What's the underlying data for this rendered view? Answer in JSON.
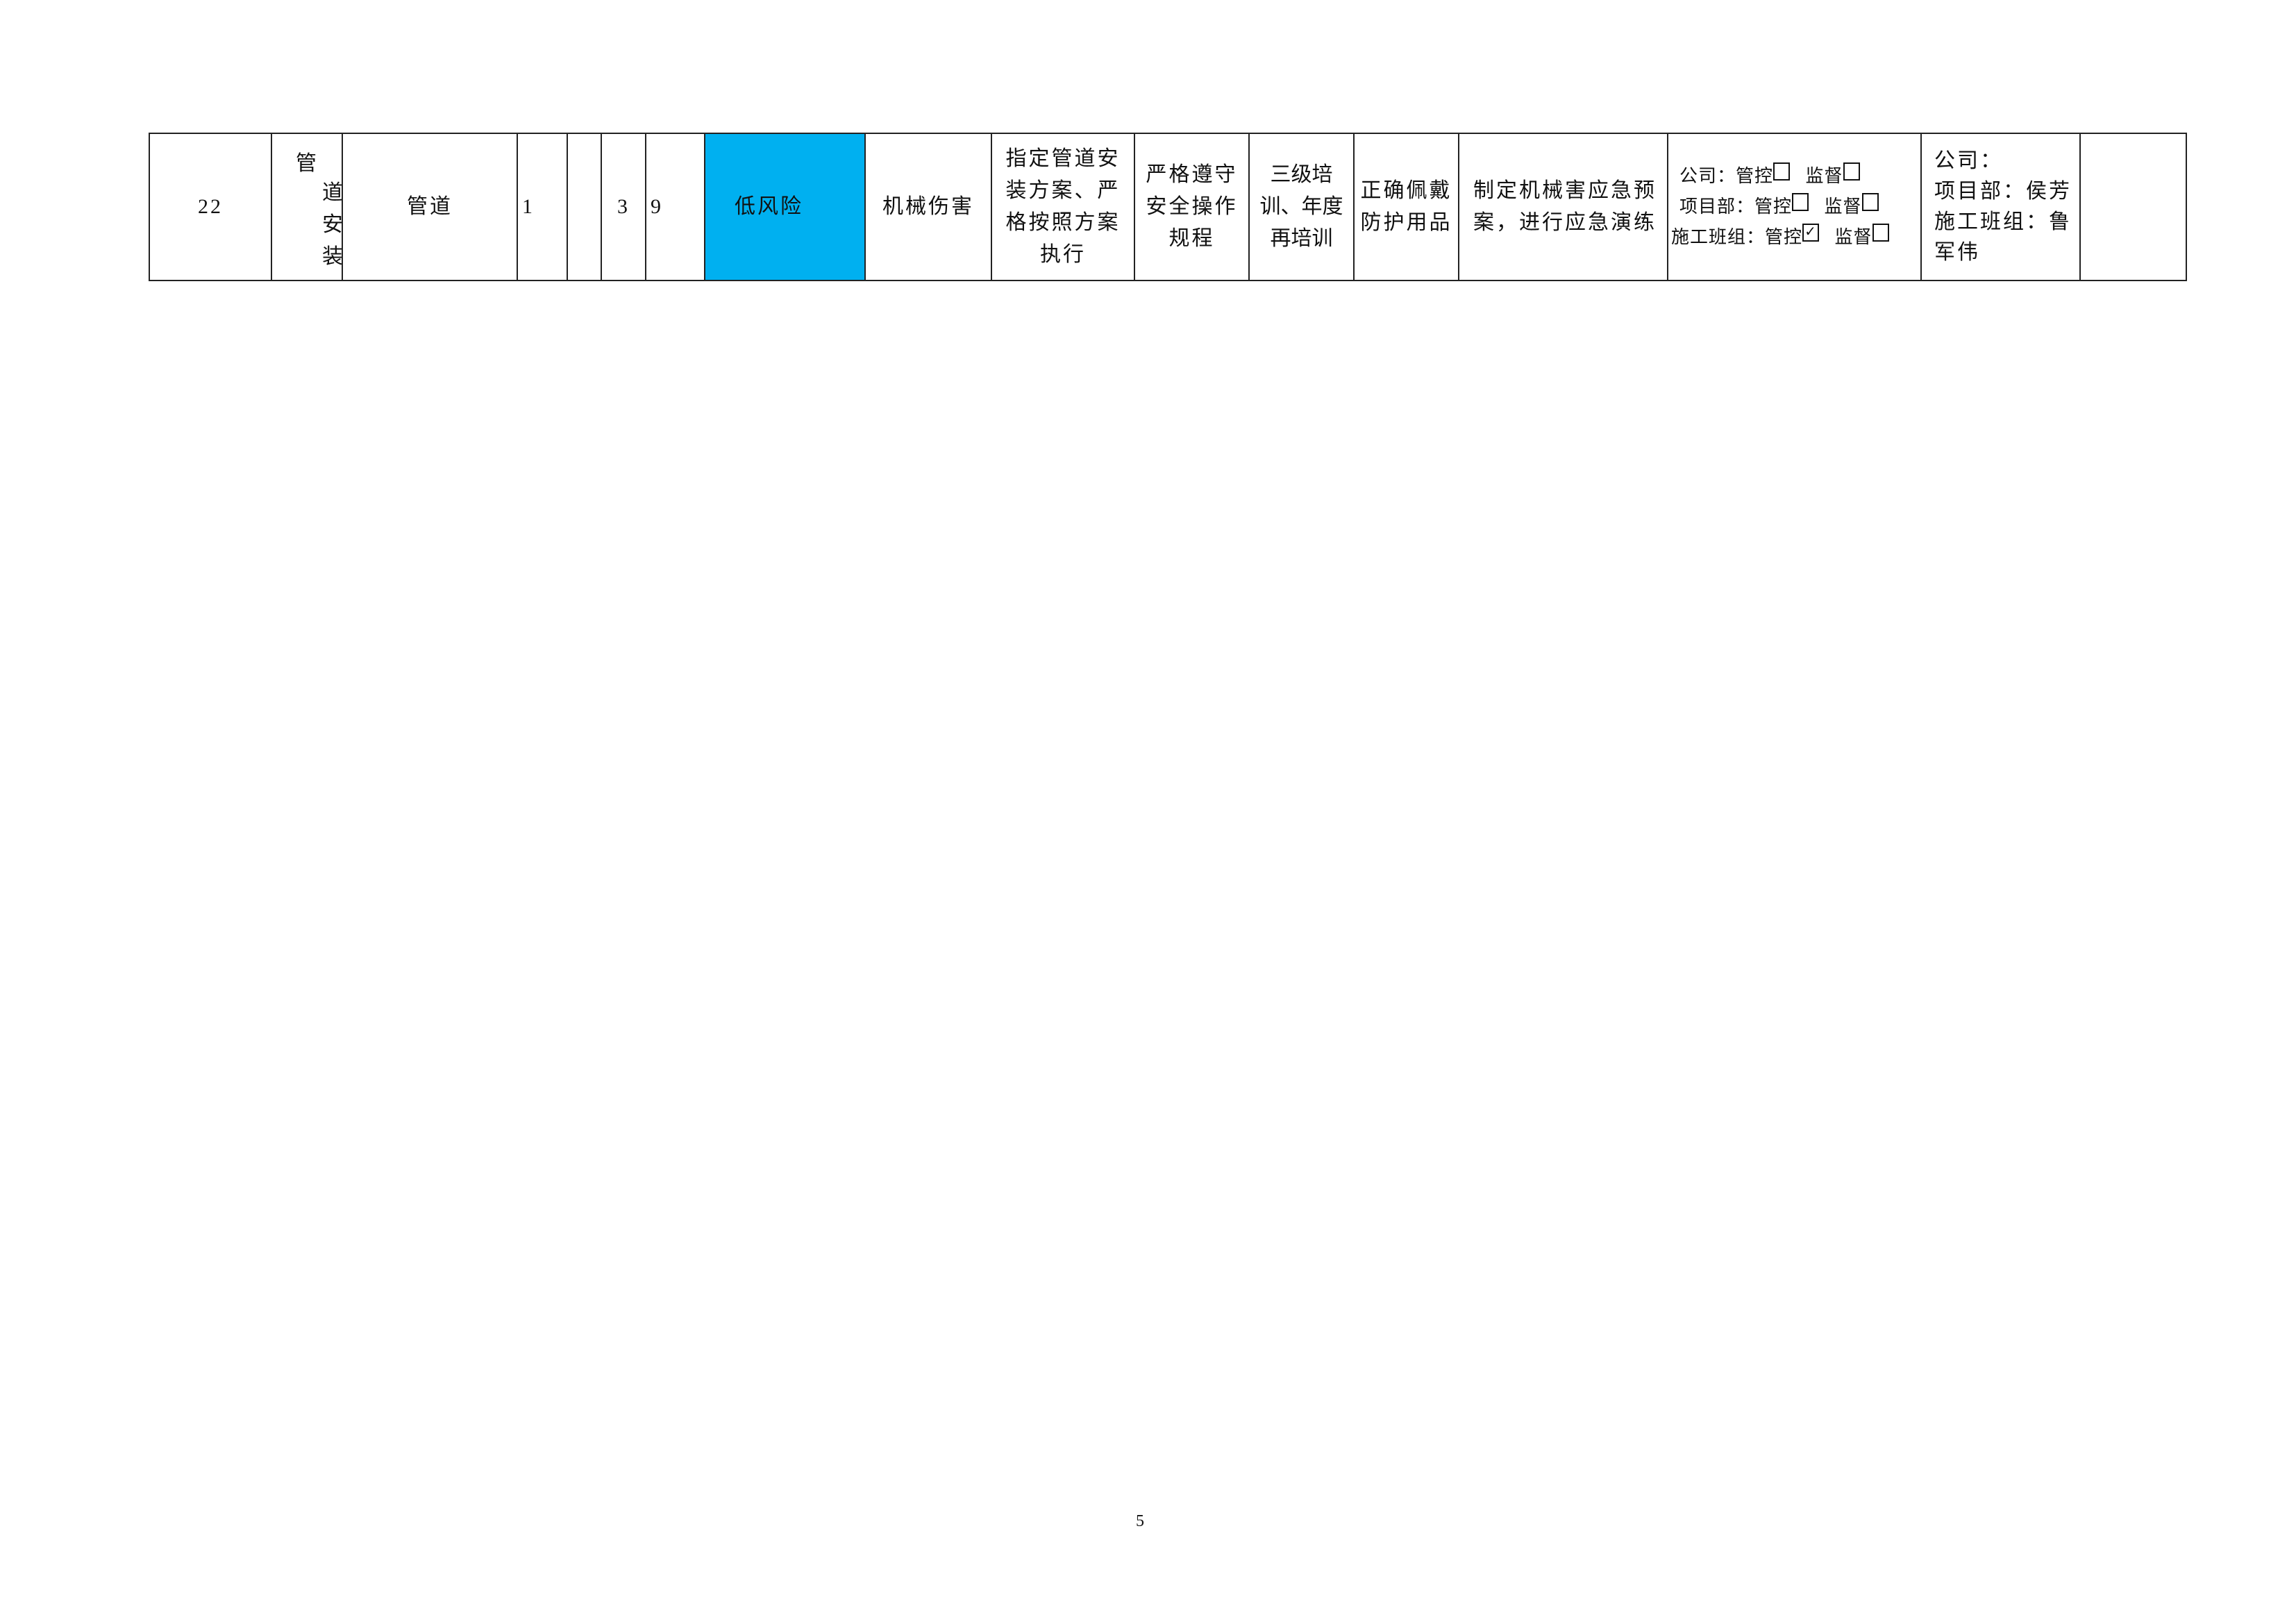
{
  "row": {
    "index": "22",
    "operation": [
      "管",
      "道",
      "安",
      "装"
    ],
    "equipment": "管道",
    "c1": "1",
    "c2": "",
    "c3": "3",
    "c4": "9",
    "risk_level": "低风险",
    "risk_color": "#00b0f0",
    "hazard": "机械伤害",
    "engineering_measure": "指定管道安装方案、严格按照方案执行",
    "management_measure": "严格遵守安全操作规程",
    "training_measure": "三级培训、年度再培训",
    "ppe_measure": "正确佩戴防护用品",
    "emergency_measure": "制定机械害应急预案，进行应急演练",
    "control_levels": [
      {
        "label": "公司：",
        "control": "管控",
        "control_checked": false,
        "supervise": "监督",
        "supervise_checked": false
      },
      {
        "label": "项目部：",
        "control": "管控",
        "control_checked": false,
        "supervise": "监督",
        "supervise_checked": false
      },
      {
        "label": "施工班组：",
        "control": "管控",
        "control_checked": true,
        "supervise": "监督",
        "supervise_checked": false
      }
    ],
    "responsible": [
      "公司：",
      "项目部：侯芳",
      "施工班组：鲁军伟"
    ],
    "remarks": ""
  },
  "page_number": "5"
}
